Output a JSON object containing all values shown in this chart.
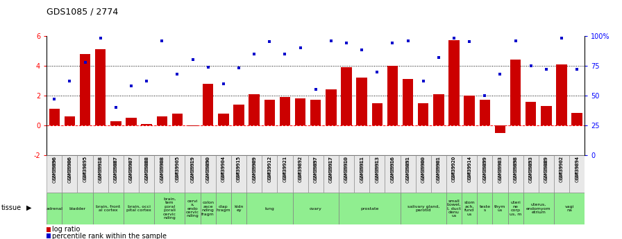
{
  "title": "GDS1085 / 2774",
  "gsm_labels": [
    "GSM39896",
    "GSM39906",
    "GSM39895",
    "GSM39918",
    "GSM39887",
    "GSM39907",
    "GSM39888",
    "GSM39908",
    "GSM39905",
    "GSM39919",
    "GSM39890",
    "GSM39904",
    "GSM39915",
    "GSM39909",
    "GSM39912",
    "GSM39921",
    "GSM39892",
    "GSM39897",
    "GSM39917",
    "GSM39910",
    "GSM39911",
    "GSM39913",
    "GSM39916",
    "GSM39891",
    "GSM39900",
    "GSM39901",
    "GSM39920",
    "GSM39914",
    "GSM39899",
    "GSM39903",
    "GSM39898",
    "GSM39893",
    "GSM39889",
    "GSM39902",
    "GSM39894"
  ],
  "log_ratio": [
    1.1,
    0.6,
    4.8,
    5.1,
    0.3,
    0.5,
    0.1,
    0.6,
    0.8,
    -0.05,
    2.8,
    0.8,
    1.4,
    2.1,
    1.7,
    1.9,
    1.8,
    1.7,
    2.4,
    3.9,
    3.2,
    1.5,
    4.0,
    3.1,
    1.5,
    2.1,
    5.7,
    2.0,
    1.7,
    -0.5,
    4.4,
    1.6,
    1.3,
    4.1,
    0.85
  ],
  "percentile_rank": [
    47,
    62,
    78,
    98,
    40,
    58,
    62,
    96,
    68,
    80,
    74,
    60,
    73,
    85,
    95,
    85,
    90,
    55,
    96,
    94,
    88,
    70,
    94,
    96,
    62,
    82,
    98,
    95,
    50,
    68,
    96,
    75,
    72,
    98,
    72
  ],
  "tissue_groups": [
    {
      "label": "adrenal",
      "start": 0,
      "end": 1
    },
    {
      "label": "bladder",
      "start": 1,
      "end": 3
    },
    {
      "label": "brain, front\nal cortex",
      "start": 3,
      "end": 5
    },
    {
      "label": "brain, occi\npital cortex",
      "start": 5,
      "end": 7
    },
    {
      "label": "brain,\ntem\nporal\nporali\ncervic\nnding",
      "start": 7,
      "end": 9
    },
    {
      "label": "cervi\nx,\nendo\ncervic\nnding",
      "start": 9,
      "end": 10
    },
    {
      "label": "colon\nasce\nnding\nfragm",
      "start": 10,
      "end": 11
    },
    {
      "label": "diap\nhragm",
      "start": 11,
      "end": 12
    },
    {
      "label": "kidn\ney",
      "start": 12,
      "end": 13
    },
    {
      "label": "lung",
      "start": 13,
      "end": 16
    },
    {
      "label": "ovary",
      "start": 16,
      "end": 19
    },
    {
      "label": "prostate",
      "start": 19,
      "end": 23
    },
    {
      "label": "salivary gland,\nparotid",
      "start": 23,
      "end": 26
    },
    {
      "label": "small\nbowel,\nl, duct\ndenu\nus",
      "start": 26,
      "end": 27
    },
    {
      "label": "stom\nach,\nfund\nus",
      "start": 27,
      "end": 28
    },
    {
      "label": "teste\ns",
      "start": 28,
      "end": 29
    },
    {
      "label": "thym\nus",
      "start": 29,
      "end": 30
    },
    {
      "label": "uteri\nne\ncorp\nus, m",
      "start": 30,
      "end": 31
    },
    {
      "label": "uterus,\nendomyom\netrium",
      "start": 31,
      "end": 33
    },
    {
      "label": "vagi\nna",
      "start": 33,
      "end": 35
    }
  ],
  "bar_color": "#CC0000",
  "dot_color": "#0000CC",
  "ylim_left": [
    -2,
    6
  ],
  "ylim_right": [
    0,
    100
  ],
  "yticks_left": [
    -2,
    0,
    2,
    4,
    6
  ],
  "yticks_right": [
    0,
    25,
    50,
    75,
    100
  ],
  "ytick_labels_right": [
    "0",
    "25",
    "50",
    "75",
    "100%"
  ]
}
